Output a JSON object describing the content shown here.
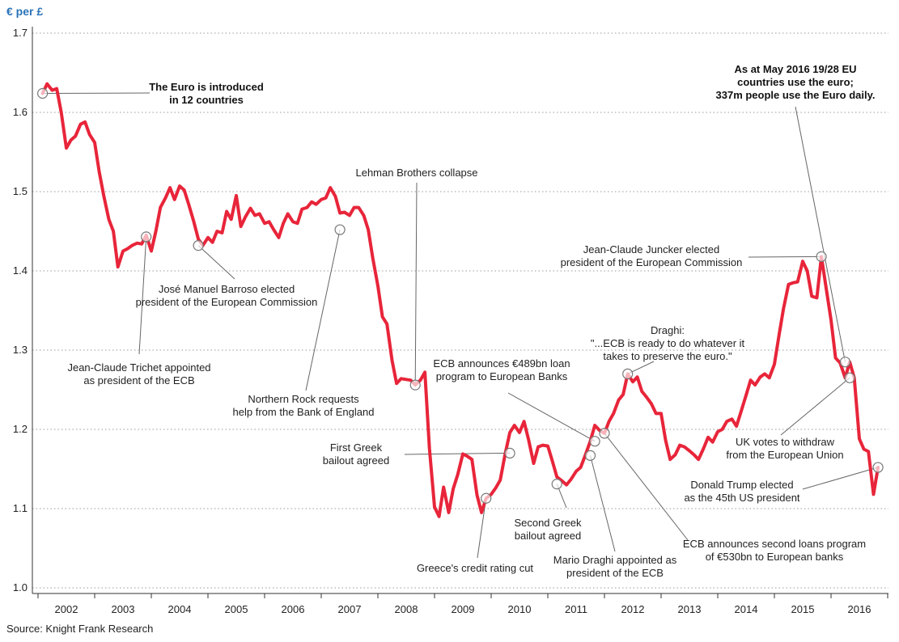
{
  "chart_data": {
    "type": "line",
    "ylabel": "€ per £",
    "source": "Source: Knight Frank Research",
    "ylim": [
      1.0,
      1.7
    ],
    "yticks": [
      "1.0",
      "1.1",
      "1.2",
      "1.3",
      "1.4",
      "1.5",
      "1.6",
      "1.7"
    ],
    "x_years": [
      "2002",
      "2003",
      "2004",
      "2005",
      "2006",
      "2007",
      "2008",
      "2009",
      "2010",
      "2011",
      "2012",
      "2013",
      "2014",
      "2015",
      "2016"
    ],
    "grid": true,
    "line_color": "#e8253a",
    "series": [
      {
        "points": [
          [
            2002.0,
            1.624
          ],
          [
            2002.08,
            1.636
          ],
          [
            2002.17,
            1.628
          ],
          [
            2002.25,
            1.63
          ],
          [
            2002.33,
            1.6
          ],
          [
            2002.42,
            1.555
          ],
          [
            2002.5,
            1.565
          ],
          [
            2002.58,
            1.57
          ],
          [
            2002.67,
            1.585
          ],
          [
            2002.75,
            1.588
          ],
          [
            2002.83,
            1.572
          ],
          [
            2002.92,
            1.562
          ],
          [
            2003.0,
            1.525
          ],
          [
            2003.08,
            1.495
          ],
          [
            2003.17,
            1.465
          ],
          [
            2003.25,
            1.45
          ],
          [
            2003.33,
            1.405
          ],
          [
            2003.42,
            1.425
          ],
          [
            2003.5,
            1.428
          ],
          [
            2003.58,
            1.432
          ],
          [
            2003.67,
            1.435
          ],
          [
            2003.75,
            1.434
          ],
          [
            2003.83,
            1.445
          ],
          [
            2003.92,
            1.425
          ],
          [
            2004.0,
            1.45
          ],
          [
            2004.08,
            1.48
          ],
          [
            2004.17,
            1.492
          ],
          [
            2004.25,
            1.505
          ],
          [
            2004.33,
            1.49
          ],
          [
            2004.42,
            1.507
          ],
          [
            2004.5,
            1.502
          ],
          [
            2004.58,
            1.484
          ],
          [
            2004.67,
            1.462
          ],
          [
            2004.75,
            1.44
          ],
          [
            2004.83,
            1.432
          ],
          [
            2004.92,
            1.442
          ],
          [
            2005.0,
            1.436
          ],
          [
            2005.08,
            1.45
          ],
          [
            2005.17,
            1.448
          ],
          [
            2005.25,
            1.475
          ],
          [
            2005.33,
            1.465
          ],
          [
            2005.42,
            1.495
          ],
          [
            2005.5,
            1.456
          ],
          [
            2005.58,
            1.468
          ],
          [
            2005.67,
            1.479
          ],
          [
            2005.75,
            1.47
          ],
          [
            2005.83,
            1.472
          ],
          [
            2005.92,
            1.46
          ],
          [
            2006.0,
            1.462
          ],
          [
            2006.08,
            1.452
          ],
          [
            2006.17,
            1.442
          ],
          [
            2006.25,
            1.46
          ],
          [
            2006.33,
            1.472
          ],
          [
            2006.42,
            1.462
          ],
          [
            2006.5,
            1.46
          ],
          [
            2006.58,
            1.478
          ],
          [
            2006.67,
            1.48
          ],
          [
            2006.75,
            1.487
          ],
          [
            2006.83,
            1.484
          ],
          [
            2006.92,
            1.49
          ],
          [
            2007.0,
            1.492
          ],
          [
            2007.08,
            1.505
          ],
          [
            2007.17,
            1.494
          ],
          [
            2007.25,
            1.473
          ],
          [
            2007.33,
            1.474
          ],
          [
            2007.42,
            1.47
          ],
          [
            2007.5,
            1.48
          ],
          [
            2007.58,
            1.48
          ],
          [
            2007.67,
            1.47
          ],
          [
            2007.75,
            1.452
          ],
          [
            2007.83,
            1.416
          ],
          [
            2007.92,
            1.381
          ],
          [
            2008.0,
            1.342
          ],
          [
            2008.08,
            1.333
          ],
          [
            2008.17,
            1.287
          ],
          [
            2008.25,
            1.258
          ],
          [
            2008.33,
            1.264
          ],
          [
            2008.42,
            1.263
          ],
          [
            2008.5,
            1.262
          ],
          [
            2008.58,
            1.256
          ],
          [
            2008.67,
            1.262
          ],
          [
            2008.75,
            1.272
          ],
          [
            2008.83,
            1.176
          ],
          [
            2008.92,
            1.102
          ],
          [
            2009.0,
            1.09
          ],
          [
            2009.08,
            1.127
          ],
          [
            2009.17,
            1.095
          ],
          [
            2009.25,
            1.125
          ],
          [
            2009.33,
            1.143
          ],
          [
            2009.42,
            1.169
          ],
          [
            2009.5,
            1.166
          ],
          [
            2009.58,
            1.162
          ],
          [
            2009.67,
            1.117
          ],
          [
            2009.75,
            1.095
          ],
          [
            2009.83,
            1.113
          ],
          [
            2009.92,
            1.118
          ],
          [
            2010.0,
            1.126
          ],
          [
            2010.08,
            1.136
          ],
          [
            2010.17,
            1.17
          ],
          [
            2010.25,
            1.196
          ],
          [
            2010.33,
            1.205
          ],
          [
            2010.42,
            1.196
          ],
          [
            2010.5,
            1.21
          ],
          [
            2010.58,
            1.187
          ],
          [
            2010.67,
            1.157
          ],
          [
            2010.75,
            1.178
          ],
          [
            2010.83,
            1.18
          ],
          [
            2010.92,
            1.179
          ],
          [
            2011.0,
            1.16
          ],
          [
            2011.08,
            1.14
          ],
          [
            2011.17,
            1.135
          ],
          [
            2011.25,
            1.13
          ],
          [
            2011.33,
            1.137
          ],
          [
            2011.42,
            1.147
          ],
          [
            2011.5,
            1.152
          ],
          [
            2011.58,
            1.167
          ],
          [
            2011.67,
            1.185
          ],
          [
            2011.75,
            1.205
          ],
          [
            2011.83,
            1.199
          ],
          [
            2011.92,
            1.195
          ],
          [
            2012.0,
            1.21
          ],
          [
            2012.08,
            1.22
          ],
          [
            2012.17,
            1.237
          ],
          [
            2012.25,
            1.244
          ],
          [
            2012.33,
            1.27
          ],
          [
            2012.42,
            1.26
          ],
          [
            2012.5,
            1.266
          ],
          [
            2012.58,
            1.248
          ],
          [
            2012.67,
            1.24
          ],
          [
            2012.75,
            1.232
          ],
          [
            2012.83,
            1.22
          ],
          [
            2012.92,
            1.22
          ],
          [
            2013.0,
            1.186
          ],
          [
            2013.08,
            1.162
          ],
          [
            2013.17,
            1.168
          ],
          [
            2013.25,
            1.18
          ],
          [
            2013.33,
            1.178
          ],
          [
            2013.42,
            1.173
          ],
          [
            2013.5,
            1.168
          ],
          [
            2013.58,
            1.162
          ],
          [
            2013.67,
            1.176
          ],
          [
            2013.75,
            1.19
          ],
          [
            2013.83,
            1.184
          ],
          [
            2013.92,
            1.197
          ],
          [
            2014.0,
            1.2
          ],
          [
            2014.08,
            1.21
          ],
          [
            2014.17,
            1.213
          ],
          [
            2014.25,
            1.204
          ],
          [
            2014.33,
            1.222
          ],
          [
            2014.42,
            1.243
          ],
          [
            2014.5,
            1.262
          ],
          [
            2014.58,
            1.256
          ],
          [
            2014.67,
            1.266
          ],
          [
            2014.75,
            1.27
          ],
          [
            2014.83,
            1.265
          ],
          [
            2014.92,
            1.282
          ],
          [
            2015.0,
            1.318
          ],
          [
            2015.08,
            1.352
          ],
          [
            2015.17,
            1.383
          ],
          [
            2015.25,
            1.385
          ],
          [
            2015.33,
            1.386
          ],
          [
            2015.42,
            1.412
          ],
          [
            2015.5,
            1.4
          ],
          [
            2015.58,
            1.368
          ],
          [
            2015.67,
            1.366
          ],
          [
            2015.75,
            1.418
          ],
          [
            2015.83,
            1.38
          ],
          [
            2015.92,
            1.338
          ],
          [
            2016.0,
            1.29
          ],
          [
            2016.08,
            1.284
          ],
          [
            2016.17,
            1.265
          ],
          [
            2016.25,
            1.285
          ],
          [
            2016.33,
            1.265
          ],
          [
            2016.42,
            1.188
          ],
          [
            2016.5,
            1.175
          ],
          [
            2016.58,
            1.172
          ],
          [
            2016.67,
            1.118
          ],
          [
            2016.75,
            1.152
          ]
        ]
      }
    ],
    "annotations": [
      {
        "text": "The Euro is introduced\nin 12 countries",
        "bold": true,
        "marker": [
          2002.0,
          1.624
        ]
      },
      {
        "text": "José Manuel Barroso elected\npresident of the European Commission",
        "bold": false,
        "marker": [
          2004.75,
          1.432
        ]
      },
      {
        "text": "Jean-Claude Trichet appointed\nas president of the ECB",
        "bold": false,
        "marker": [
          2003.83,
          1.443
        ]
      },
      {
        "text": "Northern Rock requests\nhelp from the Bank of England",
        "bold": false,
        "marker": [
          2007.25,
          1.452
        ]
      },
      {
        "text": "Lehman Brothers collapse",
        "bold": false,
        "marker": [
          2008.58,
          1.256
        ]
      },
      {
        "text": "ECB announces €489bn loan\nprogram to European Banks",
        "bold": false,
        "marker": [
          2011.75,
          1.185
        ]
      },
      {
        "text": "First Greek\nbailout agreed",
        "bold": false,
        "marker": [
          2010.25,
          1.17
        ]
      },
      {
        "text": "Greece's credit rating cut",
        "bold": false,
        "marker": [
          2009.83,
          1.113
        ]
      },
      {
        "text": "Second Greek\nbailout agreed",
        "bold": false,
        "marker": [
          2011.08,
          1.131
        ]
      },
      {
        "text": "Mario Draghi appointed as\npresident of the ECB",
        "bold": false,
        "marker": [
          2011.67,
          1.167
        ]
      },
      {
        "text": "Draghi:\n\"...ECB is ready to do whatever it\ntakes to preserve the euro.\"",
        "bold": false,
        "marker": [
          2012.33,
          1.27
        ]
      },
      {
        "text": "ECB announces second loans program\nof €530bn to European banks",
        "bold": false,
        "marker": [
          2011.92,
          1.195
        ]
      },
      {
        "text": "Jean-Claude Juncker elected\npresident of the European Commission",
        "bold": false,
        "marker": [
          2015.75,
          1.418
        ]
      },
      {
        "text": "As at May 2016 19/28 EU\ncountries use the euro;\n337m people use the Euro daily.",
        "bold": true,
        "marker": [
          2016.17,
          1.285
        ]
      },
      {
        "text": "UK votes to withdraw\nfrom the European Union",
        "bold": false,
        "marker": [
          2016.25,
          1.265
        ]
      },
      {
        "text": "Donald Trump elected\nas the 45th US president",
        "bold": false,
        "marker": [
          2016.75,
          1.152
        ]
      }
    ]
  }
}
